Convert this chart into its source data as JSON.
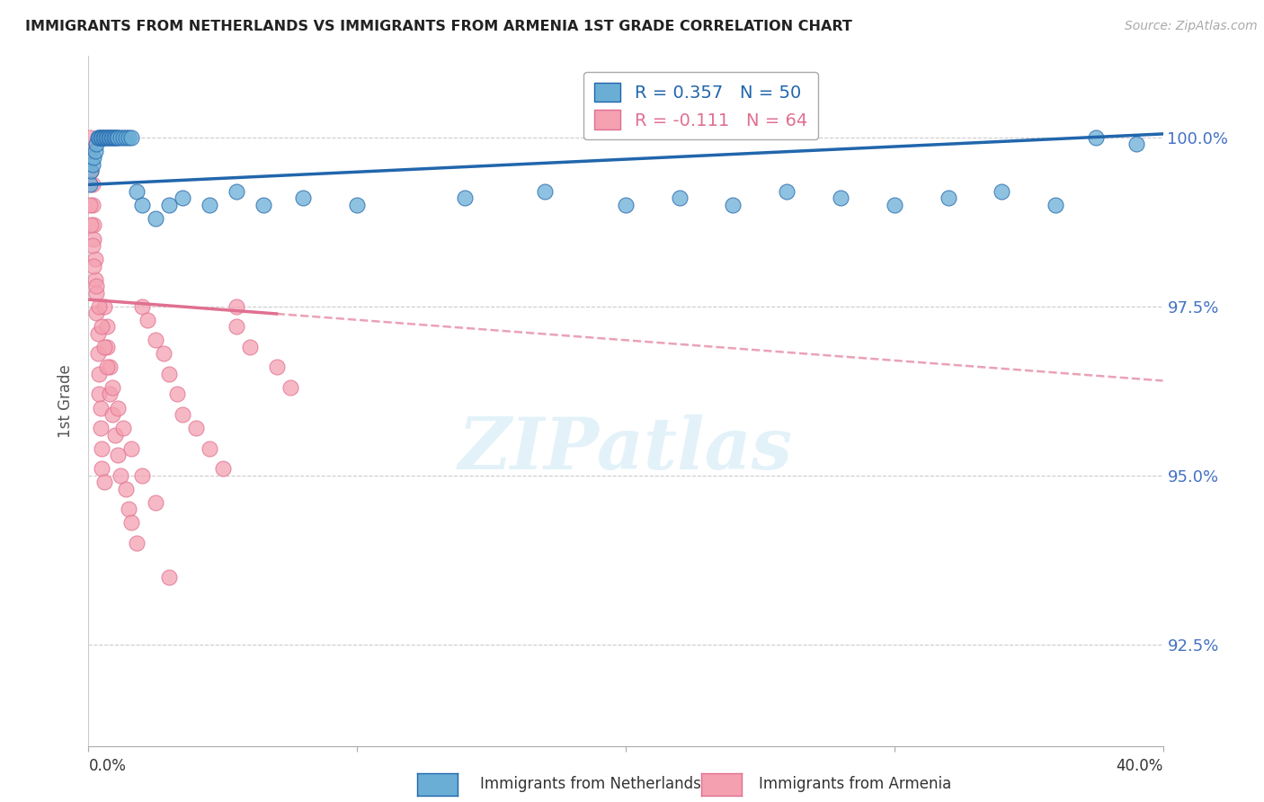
{
  "title": "IMMIGRANTS FROM NETHERLANDS VS IMMIGRANTS FROM ARMENIA 1ST GRADE CORRELATION CHART",
  "source": "Source: ZipAtlas.com",
  "ylabel": "1st Grade",
  "xlim": [
    0.0,
    40.0
  ],
  "ylim": [
    91.0,
    101.2
  ],
  "yticks": [
    92.5,
    95.0,
    97.5,
    100.0
  ],
  "ytick_labels": [
    "92.5%",
    "95.0%",
    "97.5%",
    "100.0%"
  ],
  "legend_netherlands": "Immigrants from Netherlands",
  "legend_armenia": "Immigrants from Armenia",
  "R_netherlands": 0.357,
  "N_netherlands": 50,
  "R_armenia": -0.111,
  "N_armenia": 64,
  "color_netherlands": "#6aaed6",
  "color_armenia": "#f4a0b0",
  "trendline_netherlands_color": "#2166ac",
  "trendline_armenia_color": "#e07090",
  "background_color": "#ffffff",
  "watermark": "ZIPatlas",
  "neth_trend_x0": 0.0,
  "neth_trend_y0": 99.3,
  "neth_trend_x1": 40.0,
  "neth_trend_y1": 100.05,
  "arm_trend_x0": 0.0,
  "arm_trend_y0": 97.6,
  "arm_trend_x1": 40.0,
  "arm_trend_y1": 96.4,
  "arm_solid_end": 7.0,
  "netherlands_x": [
    0.05,
    0.1,
    0.15,
    0.2,
    0.25,
    0.3,
    0.35,
    0.4,
    0.45,
    0.5,
    0.55,
    0.6,
    0.65,
    0.7,
    0.75,
    0.8,
    0.85,
    0.9,
    0.95,
    1.0,
    1.05,
    1.1,
    1.2,
    1.3,
    1.4,
    1.5,
    1.6,
    1.8,
    2.0,
    2.5,
    3.0,
    3.5,
    4.5,
    5.5,
    6.5,
    8.0,
    10.0,
    14.0,
    17.0,
    20.0,
    22.0,
    24.0,
    26.0,
    28.0,
    30.0,
    32.0,
    34.0,
    36.0,
    37.5,
    39.0
  ],
  "netherlands_y": [
    99.3,
    99.5,
    99.6,
    99.7,
    99.8,
    99.9,
    100.0,
    100.0,
    100.0,
    100.0,
    100.0,
    100.0,
    100.0,
    100.0,
    100.0,
    100.0,
    100.0,
    100.0,
    100.0,
    100.0,
    100.0,
    100.0,
    100.0,
    100.0,
    100.0,
    100.0,
    100.0,
    99.2,
    99.0,
    98.8,
    99.0,
    99.1,
    99.0,
    99.2,
    99.0,
    99.1,
    99.0,
    99.1,
    99.2,
    99.0,
    99.1,
    99.0,
    99.2,
    99.1,
    99.0,
    99.1,
    99.2,
    99.0,
    100.0,
    99.9
  ],
  "armenia_x": [
    0.05,
    0.1,
    0.1,
    0.15,
    0.15,
    0.2,
    0.2,
    0.25,
    0.25,
    0.3,
    0.3,
    0.35,
    0.35,
    0.4,
    0.4,
    0.45,
    0.45,
    0.5,
    0.5,
    0.6,
    0.6,
    0.7,
    0.7,
    0.8,
    0.8,
    0.9,
    1.0,
    1.1,
    1.2,
    1.4,
    1.5,
    1.6,
    1.8,
    2.0,
    2.2,
    2.5,
    2.8,
    3.0,
    3.3,
    3.5,
    4.0,
    4.5,
    5.0,
    5.5,
    5.5,
    6.0,
    7.0,
    7.5,
    0.05,
    0.1,
    0.15,
    0.2,
    0.3,
    0.4,
    0.5,
    0.6,
    0.7,
    0.9,
    1.1,
    1.3,
    1.6,
    2.0,
    2.5,
    3.0
  ],
  "armenia_y": [
    100.0,
    99.8,
    99.5,
    99.3,
    99.0,
    98.7,
    98.5,
    98.2,
    97.9,
    97.7,
    97.4,
    97.1,
    96.8,
    96.5,
    96.2,
    96.0,
    95.7,
    95.4,
    95.1,
    94.9,
    97.5,
    97.2,
    96.9,
    96.6,
    96.2,
    95.9,
    95.6,
    95.3,
    95.0,
    94.8,
    94.5,
    94.3,
    94.0,
    97.5,
    97.3,
    97.0,
    96.8,
    96.5,
    96.2,
    95.9,
    95.7,
    95.4,
    95.1,
    97.5,
    97.2,
    96.9,
    96.6,
    96.3,
    99.0,
    98.7,
    98.4,
    98.1,
    97.8,
    97.5,
    97.2,
    96.9,
    96.6,
    96.3,
    96.0,
    95.7,
    95.4,
    95.0,
    94.6,
    93.5
  ]
}
